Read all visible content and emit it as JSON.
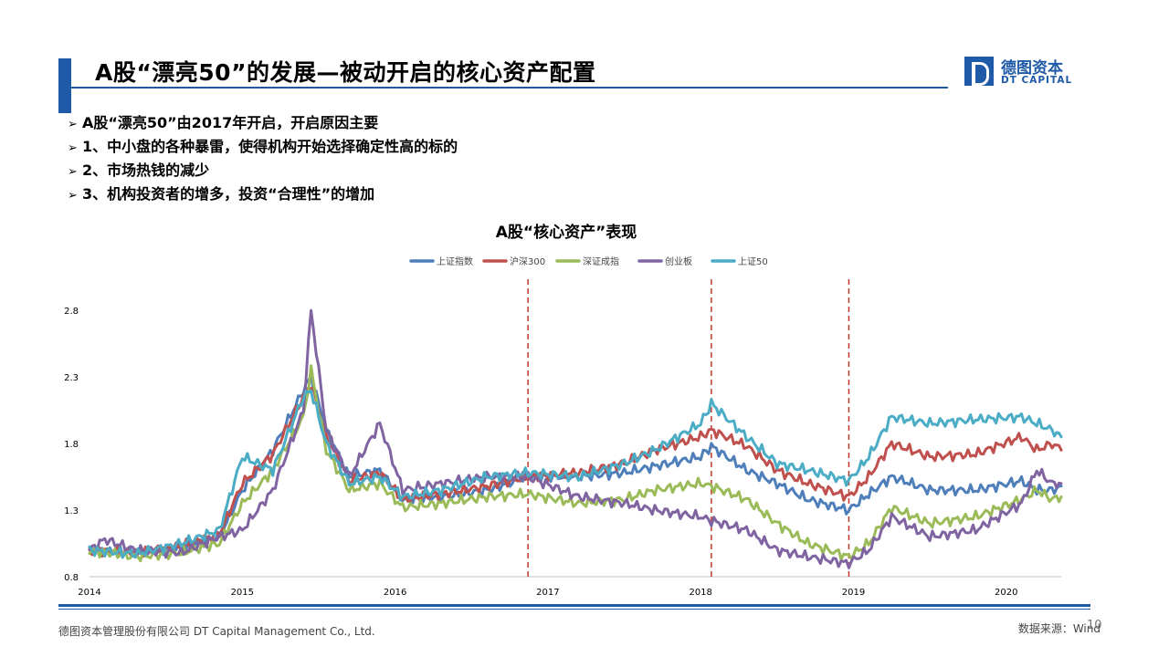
{
  "header": {
    "title": "A股“漂亮50”的发展—被动开启的核心资产配置",
    "logo_cn": "德图资本",
    "logo_en": "DT CAPITAL"
  },
  "bullets": [
    "A股“漂亮50”由2017年开启，开启原因主要",
    "1、中小盘的各种暴雷，使得机构开始选择确定性高的标的",
    "2、市场热钱的减少",
    "3、机构投资者的增多，投资“合理性”的增加"
  ],
  "footer": {
    "company": "德图资本管理股份有限公司  DT Capital Management  Co., Ltd.",
    "source": "数据来源：Wind",
    "page": "10"
  },
  "chart_data": {
    "type": "line",
    "title": "A股“核心资产”表现",
    "legend_position": "top",
    "x_ticks": [
      "2014",
      "2015",
      "2016",
      "2017",
      "2018",
      "2019",
      "2020"
    ],
    "y_ticks": [
      "2.8",
      "2.3",
      "1.8",
      "1.3",
      "0.8"
    ],
    "ylim": [
      0.8,
      2.8
    ],
    "xlim": [
      2014.0,
      2020.36
    ],
    "reference_lines_x": [
      2016.87,
      2018.07,
      2018.97
    ],
    "series": [
      {
        "name": "上证指数",
        "color": "#4f7fba",
        "x": [
          2014.0,
          2014.3,
          2014.6,
          2014.85,
          2015.0,
          2015.2,
          2015.4,
          2015.45,
          2015.55,
          2015.7,
          2015.9,
          2016.05,
          2016.3,
          2016.6,
          2016.87,
          2017.2,
          2017.5,
          2017.7,
          2018.0,
          2018.07,
          2018.3,
          2018.5,
          2018.7,
          2018.97,
          2019.1,
          2019.25,
          2019.5,
          2019.8,
          2020.1,
          2020.2,
          2020.3,
          2020.36
        ],
        "y": [
          1.0,
          0.98,
          1.02,
          1.1,
          1.45,
          1.75,
          2.2,
          2.3,
          1.9,
          1.55,
          1.6,
          1.38,
          1.4,
          1.45,
          1.55,
          1.55,
          1.58,
          1.63,
          1.7,
          1.78,
          1.6,
          1.5,
          1.38,
          1.3,
          1.42,
          1.55,
          1.45,
          1.45,
          1.52,
          1.45,
          1.45,
          1.48
        ]
      },
      {
        "name": "沪深300",
        "color": "#c0504d",
        "x": [
          2014.0,
          2014.3,
          2014.6,
          2014.85,
          2015.0,
          2015.2,
          2015.4,
          2015.45,
          2015.55,
          2015.7,
          2015.9,
          2016.05,
          2016.3,
          2016.6,
          2016.87,
          2017.2,
          2017.5,
          2017.7,
          2018.0,
          2018.07,
          2018.3,
          2018.5,
          2018.7,
          2018.97,
          2019.1,
          2019.25,
          2019.5,
          2019.8,
          2020.1,
          2020.2,
          2020.3,
          2020.36
        ],
        "y": [
          1.0,
          0.98,
          1.03,
          1.12,
          1.5,
          1.72,
          2.15,
          2.25,
          1.85,
          1.52,
          1.58,
          1.38,
          1.42,
          1.48,
          1.55,
          1.58,
          1.65,
          1.75,
          1.85,
          1.9,
          1.78,
          1.6,
          1.5,
          1.4,
          1.55,
          1.8,
          1.7,
          1.72,
          1.85,
          1.75,
          1.8,
          1.75
        ]
      },
      {
        "name": "深证成指",
        "color": "#9bbb59",
        "x": [
          2014.0,
          2014.3,
          2014.6,
          2014.85,
          2015.0,
          2015.2,
          2015.4,
          2015.45,
          2015.55,
          2015.7,
          2015.9,
          2016.05,
          2016.3,
          2016.6,
          2016.87,
          2017.2,
          2017.5,
          2017.7,
          2018.0,
          2018.07,
          2018.3,
          2018.5,
          2018.7,
          2018.97,
          2019.1,
          2019.25,
          2019.5,
          2019.8,
          2020.1,
          2020.2,
          2020.3,
          2020.36
        ],
        "y": [
          1.0,
          0.95,
          0.98,
          1.05,
          1.35,
          1.6,
          2.0,
          2.35,
          1.75,
          1.45,
          1.5,
          1.32,
          1.35,
          1.4,
          1.42,
          1.35,
          1.38,
          1.45,
          1.5,
          1.48,
          1.38,
          1.2,
          1.05,
          0.95,
          1.05,
          1.32,
          1.2,
          1.25,
          1.38,
          1.45,
          1.38,
          1.4
        ]
      },
      {
        "name": "创业板",
        "color": "#8064a2",
        "x": [
          2014.0,
          2014.1,
          2014.3,
          2014.6,
          2014.85,
          2015.0,
          2015.2,
          2015.4,
          2015.45,
          2015.55,
          2015.7,
          2015.9,
          2016.05,
          2016.3,
          2016.6,
          2016.87,
          2017.2,
          2017.5,
          2017.7,
          2018.0,
          2018.07,
          2018.3,
          2018.5,
          2018.7,
          2018.97,
          2019.1,
          2019.25,
          2019.5,
          2019.8,
          2020.1,
          2020.2,
          2020.3,
          2020.36
        ],
        "y": [
          1.0,
          1.08,
          1.0,
          0.98,
          1.1,
          1.15,
          1.45,
          2.05,
          2.8,
          1.9,
          1.55,
          1.95,
          1.45,
          1.5,
          1.55,
          1.55,
          1.4,
          1.35,
          1.3,
          1.25,
          1.22,
          1.15,
          1.0,
          0.95,
          0.9,
          1.0,
          1.25,
          1.1,
          1.15,
          1.35,
          1.6,
          1.5,
          1.5
        ]
      },
      {
        "name": "上证50",
        "color": "#4bacc6",
        "x": [
          2014.0,
          2014.3,
          2014.6,
          2014.85,
          2015.0,
          2015.2,
          2015.4,
          2015.45,
          2015.55,
          2015.7,
          2015.9,
          2016.05,
          2016.3,
          2016.6,
          2016.87,
          2017.2,
          2017.5,
          2017.7,
          2018.0,
          2018.07,
          2018.3,
          2018.5,
          2018.7,
          2018.97,
          2019.1,
          2019.25,
          2019.5,
          2019.8,
          2020.1,
          2020.2,
          2020.3,
          2020.36
        ],
        "y": [
          1.0,
          0.97,
          1.05,
          1.15,
          1.7,
          1.6,
          2.15,
          2.2,
          1.8,
          1.5,
          1.55,
          1.4,
          1.45,
          1.55,
          1.58,
          1.55,
          1.65,
          1.75,
          1.95,
          2.1,
          1.85,
          1.65,
          1.6,
          1.52,
          1.7,
          2.0,
          1.95,
          1.98,
          2.0,
          1.95,
          1.9,
          1.85
        ]
      }
    ]
  }
}
